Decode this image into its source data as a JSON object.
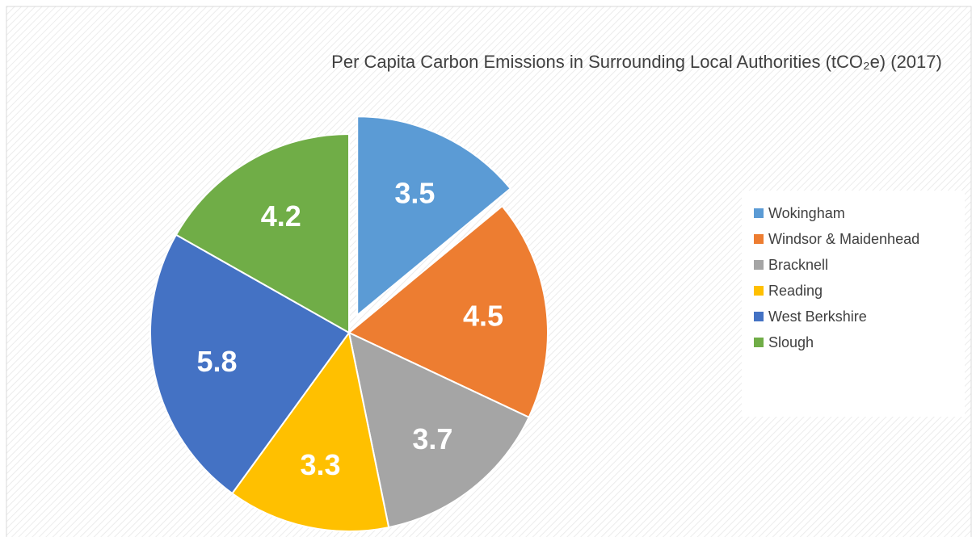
{
  "chart_data": {
    "type": "pie",
    "title": "Per Capita Carbon Emissions in Surrounding Local Authorities (tCO₂e) (2017)",
    "categories": [
      "Wokingham",
      "Windsor & Maidenhead",
      "Bracknell",
      "Reading",
      "West Berkshire",
      "Slough"
    ],
    "values": [
      3.5,
      4.5,
      3.7,
      3.3,
      5.8,
      4.2
    ],
    "colors": [
      "#5b9bd5",
      "#ed7d31",
      "#a5a5a5",
      "#ffc000",
      "#4472c4",
      "#70ad47"
    ],
    "legend": "right"
  }
}
